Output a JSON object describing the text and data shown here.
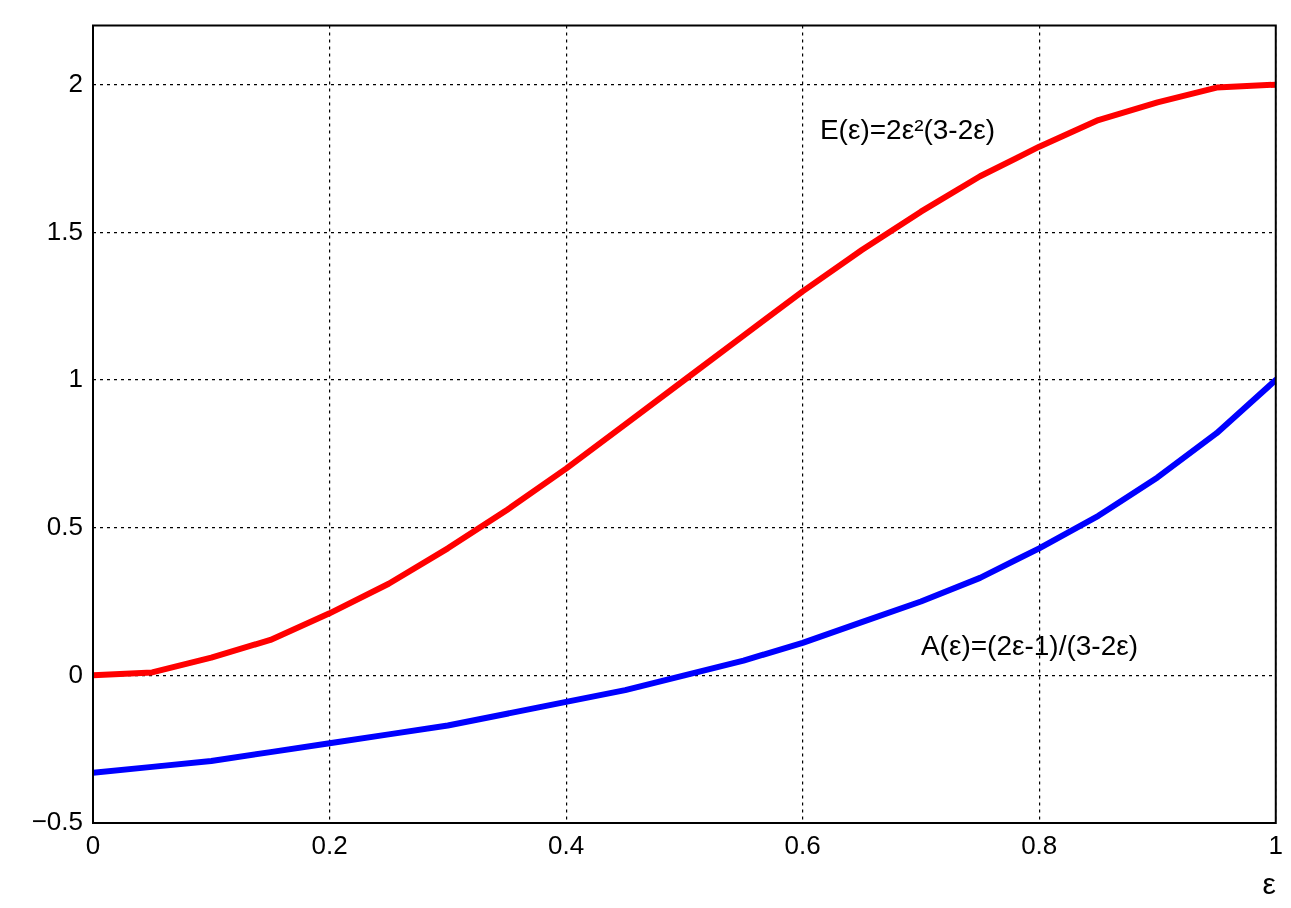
{
  "chart_data": {
    "type": "line",
    "xlabel": "ε",
    "x": [
      0,
      0.05,
      0.1,
      0.15,
      0.2,
      0.25,
      0.3,
      0.35,
      0.4,
      0.45,
      0.5,
      0.55,
      0.6,
      0.65,
      0.7,
      0.75,
      0.8,
      0.85,
      0.9,
      0.95,
      1
    ],
    "series": [
      {
        "name": "E(ε)=2ε²(3-2ε)",
        "color": "#ff0000",
        "values": [
          0,
          0.01,
          0.06,
          0.12,
          0.21,
          0.31,
          0.43,
          0.56,
          0.7,
          0.85,
          1,
          1.15,
          1.3,
          1.44,
          1.57,
          1.69,
          1.79,
          1.88,
          1.94,
          1.99,
          2
        ]
      },
      {
        "name": "A(ε)=(2ε-1)/(3-2ε)",
        "color": "#0000ff",
        "values": [
          -0.33,
          -0.31,
          -0.29,
          -0.26,
          -0.23,
          -0.2,
          -0.17,
          -0.13,
          -0.09,
          -0.05,
          0,
          0.05,
          0.11,
          0.18,
          0.25,
          0.33,
          0.43,
          0.54,
          0.67,
          0.82,
          1
        ]
      }
    ],
    "xlim": [
      0,
      1
    ],
    "xticks": [
      0,
      0.2,
      0.4,
      0.6,
      0.8,
      1
    ],
    "ylim": [
      -0.5,
      2.2
    ],
    "yticks": [
      {
        "value": -0.5,
        "label": "−0.5"
      },
      0,
      0.5,
      1,
      1.5,
      2
    ],
    "grid": true,
    "legend": false,
    "marker": "none",
    "line_style": "solid"
  }
}
